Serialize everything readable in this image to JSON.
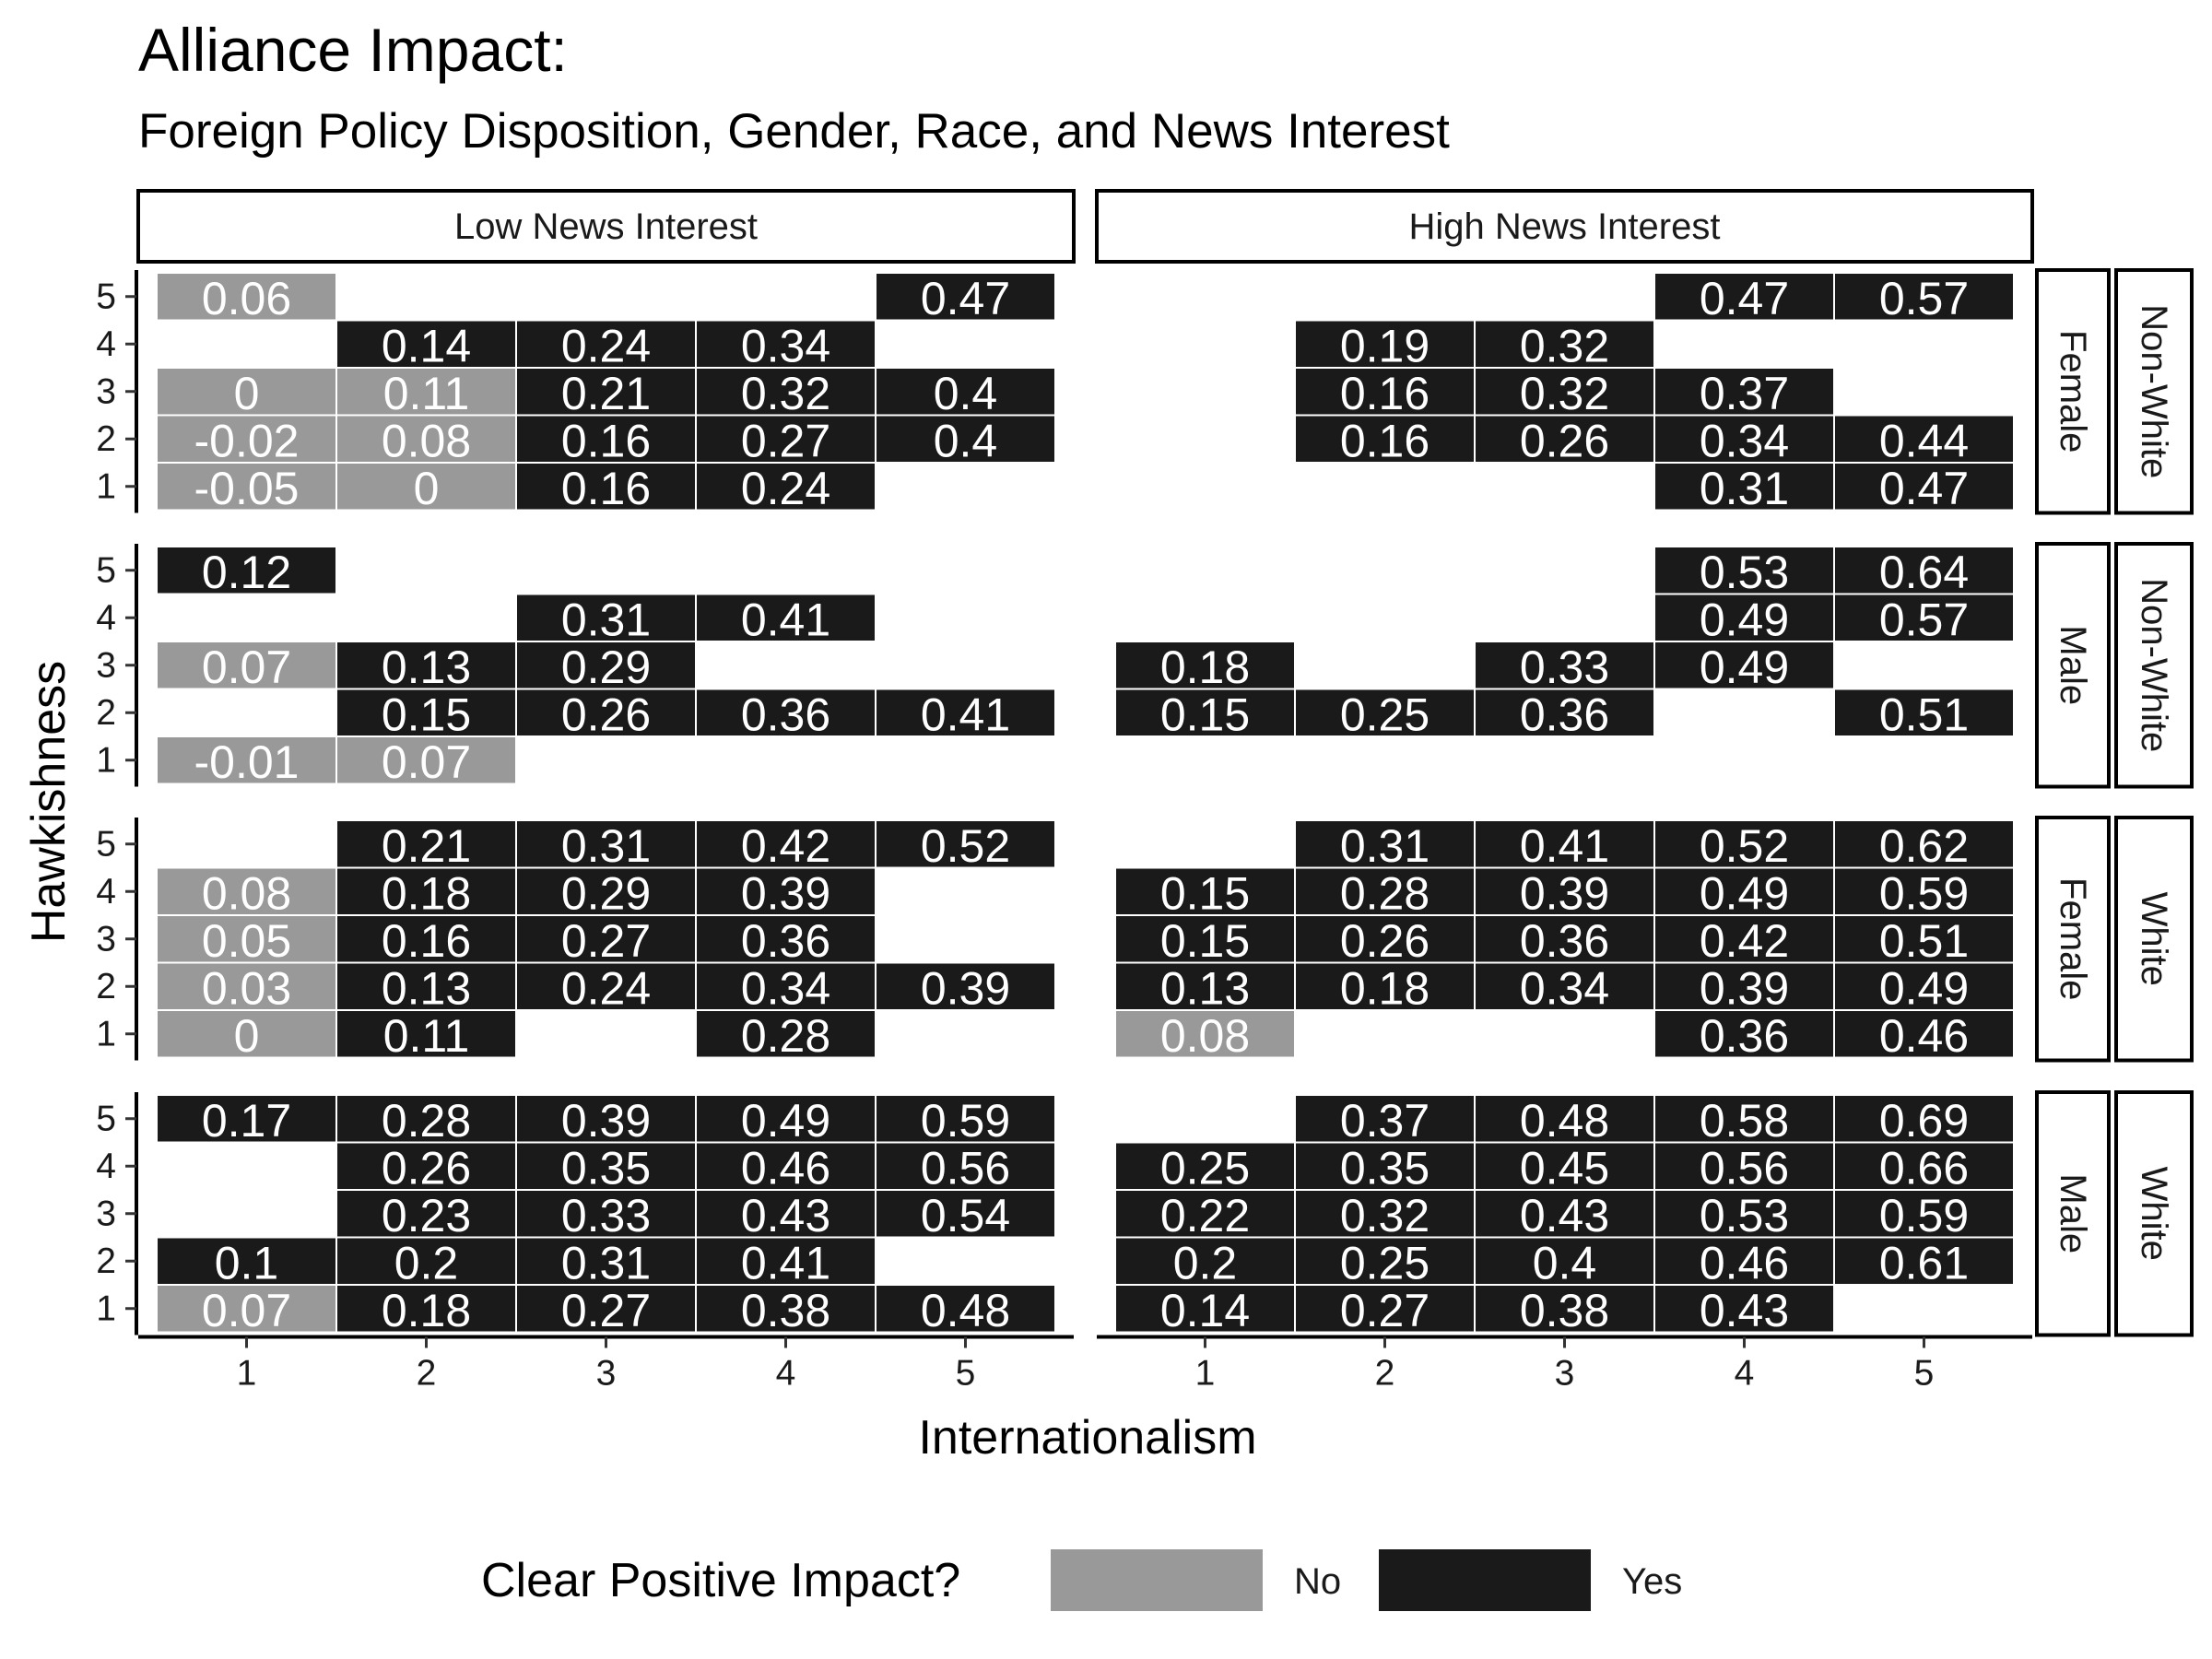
{
  "chart_data": {
    "type": "heatmap",
    "title": "Alliance Impact:",
    "subtitle": "Foreign Policy Disposition, Gender, Race, and News Interest",
    "xlabel": "Internationalism",
    "ylabel": "Hawkishness",
    "x_ticks": [
      "1",
      "2",
      "3",
      "4",
      "5"
    ],
    "y_ticks": [
      "1",
      "2",
      "3",
      "4",
      "5"
    ],
    "xlim": [
      1,
      5
    ],
    "ylim": [
      1,
      5
    ],
    "grid": false,
    "legend": {
      "title": "Clear Positive Impact?",
      "position": "bottom",
      "entries": [
        {
          "label": "No",
          "color": "#999999"
        },
        {
          "label": "Yes",
          "color": "#1a1a1a"
        }
      ]
    },
    "columns": [
      "Low News Interest",
      "High News Interest"
    ],
    "rows": [
      {
        "gender": "Female",
        "race": "Non-White"
      },
      {
        "gender": "Male",
        "race": "Non-White"
      },
      {
        "gender": "Female",
        "race": "White"
      },
      {
        "gender": "Male",
        "race": "White"
      }
    ],
    "panels": [
      {
        "row": 0,
        "col": 0,
        "cells": [
          {
            "x": 1,
            "y": 5,
            "value": "0.06",
            "positive": false
          },
          {
            "x": 5,
            "y": 5,
            "value": "0.47",
            "positive": true
          },
          {
            "x": 2,
            "y": 4,
            "value": "0.14",
            "positive": true
          },
          {
            "x": 3,
            "y": 4,
            "value": "0.24",
            "positive": true
          },
          {
            "x": 4,
            "y": 4,
            "value": "0.34",
            "positive": true
          },
          {
            "x": 1,
            "y": 3,
            "value": "0",
            "positive": false
          },
          {
            "x": 2,
            "y": 3,
            "value": "0.11",
            "positive": false
          },
          {
            "x": 3,
            "y": 3,
            "value": "0.21",
            "positive": true
          },
          {
            "x": 4,
            "y": 3,
            "value": "0.32",
            "positive": true
          },
          {
            "x": 5,
            "y": 3,
            "value": "0.4",
            "positive": true
          },
          {
            "x": 1,
            "y": 2,
            "value": "-0.02",
            "positive": false
          },
          {
            "x": 2,
            "y": 2,
            "value": "0.08",
            "positive": false
          },
          {
            "x": 3,
            "y": 2,
            "value": "0.16",
            "positive": true
          },
          {
            "x": 4,
            "y": 2,
            "value": "0.27",
            "positive": true
          },
          {
            "x": 5,
            "y": 2,
            "value": "0.4",
            "positive": true
          },
          {
            "x": 1,
            "y": 1,
            "value": "-0.05",
            "positive": false
          },
          {
            "x": 2,
            "y": 1,
            "value": "0",
            "positive": false
          },
          {
            "x": 3,
            "y": 1,
            "value": "0.16",
            "positive": true
          },
          {
            "x": 4,
            "y": 1,
            "value": "0.24",
            "positive": true
          }
        ]
      },
      {
        "row": 0,
        "col": 1,
        "cells": [
          {
            "x": 4,
            "y": 5,
            "value": "0.47",
            "positive": true
          },
          {
            "x": 5,
            "y": 5,
            "value": "0.57",
            "positive": true
          },
          {
            "x": 2,
            "y": 4,
            "value": "0.19",
            "positive": true
          },
          {
            "x": 3,
            "y": 4,
            "value": "0.32",
            "positive": true
          },
          {
            "x": 2,
            "y": 3,
            "value": "0.16",
            "positive": true
          },
          {
            "x": 3,
            "y": 3,
            "value": "0.32",
            "positive": true
          },
          {
            "x": 4,
            "y": 3,
            "value": "0.37",
            "positive": true
          },
          {
            "x": 2,
            "y": 2,
            "value": "0.16",
            "positive": true
          },
          {
            "x": 3,
            "y": 2,
            "value": "0.26",
            "positive": true
          },
          {
            "x": 4,
            "y": 2,
            "value": "0.34",
            "positive": true
          },
          {
            "x": 5,
            "y": 2,
            "value": "0.44",
            "positive": true
          },
          {
            "x": 4,
            "y": 1,
            "value": "0.31",
            "positive": true
          },
          {
            "x": 5,
            "y": 1,
            "value": "0.47",
            "positive": true
          }
        ]
      },
      {
        "row": 1,
        "col": 0,
        "cells": [
          {
            "x": 1,
            "y": 5,
            "value": "0.12",
            "positive": true
          },
          {
            "x": 3,
            "y": 4,
            "value": "0.31",
            "positive": true
          },
          {
            "x": 4,
            "y": 4,
            "value": "0.41",
            "positive": true
          },
          {
            "x": 1,
            "y": 3,
            "value": "0.07",
            "positive": false
          },
          {
            "x": 2,
            "y": 3,
            "value": "0.13",
            "positive": true
          },
          {
            "x": 3,
            "y": 3,
            "value": "0.29",
            "positive": true
          },
          {
            "x": 2,
            "y": 2,
            "value": "0.15",
            "positive": true
          },
          {
            "x": 3,
            "y": 2,
            "value": "0.26",
            "positive": true
          },
          {
            "x": 4,
            "y": 2,
            "value": "0.36",
            "positive": true
          },
          {
            "x": 5,
            "y": 2,
            "value": "0.41",
            "positive": true
          },
          {
            "x": 1,
            "y": 1,
            "value": "-0.01",
            "positive": false
          },
          {
            "x": 2,
            "y": 1,
            "value": "0.07",
            "positive": false
          }
        ]
      },
      {
        "row": 1,
        "col": 1,
        "cells": [
          {
            "x": 4,
            "y": 5,
            "value": "0.53",
            "positive": true
          },
          {
            "x": 5,
            "y": 5,
            "value": "0.64",
            "positive": true
          },
          {
            "x": 4,
            "y": 4,
            "value": "0.49",
            "positive": true
          },
          {
            "x": 5,
            "y": 4,
            "value": "0.57",
            "positive": true
          },
          {
            "x": 1,
            "y": 3,
            "value": "0.18",
            "positive": true
          },
          {
            "x": 3,
            "y": 3,
            "value": "0.33",
            "positive": true
          },
          {
            "x": 4,
            "y": 3,
            "value": "0.49",
            "positive": true
          },
          {
            "x": 1,
            "y": 2,
            "value": "0.15",
            "positive": true
          },
          {
            "x": 2,
            "y": 2,
            "value": "0.25",
            "positive": true
          },
          {
            "x": 3,
            "y": 2,
            "value": "0.36",
            "positive": true
          },
          {
            "x": 5,
            "y": 2,
            "value": "0.51",
            "positive": true
          }
        ]
      },
      {
        "row": 2,
        "col": 0,
        "cells": [
          {
            "x": 2,
            "y": 5,
            "value": "0.21",
            "positive": true
          },
          {
            "x": 3,
            "y": 5,
            "value": "0.31",
            "positive": true
          },
          {
            "x": 4,
            "y": 5,
            "value": "0.42",
            "positive": true
          },
          {
            "x": 5,
            "y": 5,
            "value": "0.52",
            "positive": true
          },
          {
            "x": 1,
            "y": 4,
            "value": "0.08",
            "positive": false
          },
          {
            "x": 2,
            "y": 4,
            "value": "0.18",
            "positive": true
          },
          {
            "x": 3,
            "y": 4,
            "value": "0.29",
            "positive": true
          },
          {
            "x": 4,
            "y": 4,
            "value": "0.39",
            "positive": true
          },
          {
            "x": 1,
            "y": 3,
            "value": "0.05",
            "positive": false
          },
          {
            "x": 2,
            "y": 3,
            "value": "0.16",
            "positive": true
          },
          {
            "x": 3,
            "y": 3,
            "value": "0.27",
            "positive": true
          },
          {
            "x": 4,
            "y": 3,
            "value": "0.36",
            "positive": true
          },
          {
            "x": 1,
            "y": 2,
            "value": "0.03",
            "positive": false
          },
          {
            "x": 2,
            "y": 2,
            "value": "0.13",
            "positive": true
          },
          {
            "x": 3,
            "y": 2,
            "value": "0.24",
            "positive": true
          },
          {
            "x": 4,
            "y": 2,
            "value": "0.34",
            "positive": true
          },
          {
            "x": 5,
            "y": 2,
            "value": "0.39",
            "positive": true
          },
          {
            "x": 1,
            "y": 1,
            "value": "0",
            "positive": false
          },
          {
            "x": 2,
            "y": 1,
            "value": "0.11",
            "positive": true
          },
          {
            "x": 4,
            "y": 1,
            "value": "0.28",
            "positive": true
          }
        ]
      },
      {
        "row": 2,
        "col": 1,
        "cells": [
          {
            "x": 2,
            "y": 5,
            "value": "0.31",
            "positive": true
          },
          {
            "x": 3,
            "y": 5,
            "value": "0.41",
            "positive": true
          },
          {
            "x": 4,
            "y": 5,
            "value": "0.52",
            "positive": true
          },
          {
            "x": 5,
            "y": 5,
            "value": "0.62",
            "positive": true
          },
          {
            "x": 1,
            "y": 4,
            "value": "0.15",
            "positive": true
          },
          {
            "x": 2,
            "y": 4,
            "value": "0.28",
            "positive": true
          },
          {
            "x": 3,
            "y": 4,
            "value": "0.39",
            "positive": true
          },
          {
            "x": 4,
            "y": 4,
            "value": "0.49",
            "positive": true
          },
          {
            "x": 5,
            "y": 4,
            "value": "0.59",
            "positive": true
          },
          {
            "x": 1,
            "y": 3,
            "value": "0.15",
            "positive": true
          },
          {
            "x": 2,
            "y": 3,
            "value": "0.26",
            "positive": true
          },
          {
            "x": 3,
            "y": 3,
            "value": "0.36",
            "positive": true
          },
          {
            "x": 4,
            "y": 3,
            "value": "0.42",
            "positive": true
          },
          {
            "x": 5,
            "y": 3,
            "value": "0.51",
            "positive": true
          },
          {
            "x": 1,
            "y": 2,
            "value": "0.13",
            "positive": true
          },
          {
            "x": 2,
            "y": 2,
            "value": "0.18",
            "positive": true
          },
          {
            "x": 3,
            "y": 2,
            "value": "0.34",
            "positive": true
          },
          {
            "x": 4,
            "y": 2,
            "value": "0.39",
            "positive": true
          },
          {
            "x": 5,
            "y": 2,
            "value": "0.49",
            "positive": true
          },
          {
            "x": 1,
            "y": 1,
            "value": "0.08",
            "positive": false
          },
          {
            "x": 4,
            "y": 1,
            "value": "0.36",
            "positive": true
          },
          {
            "x": 5,
            "y": 1,
            "value": "0.46",
            "positive": true
          }
        ]
      },
      {
        "row": 3,
        "col": 0,
        "cells": [
          {
            "x": 1,
            "y": 5,
            "value": "0.17",
            "positive": true
          },
          {
            "x": 2,
            "y": 5,
            "value": "0.28",
            "positive": true
          },
          {
            "x": 3,
            "y": 5,
            "value": "0.39",
            "positive": true
          },
          {
            "x": 4,
            "y": 5,
            "value": "0.49",
            "positive": true
          },
          {
            "x": 5,
            "y": 5,
            "value": "0.59",
            "positive": true
          },
          {
            "x": 2,
            "y": 4,
            "value": "0.26",
            "positive": true
          },
          {
            "x": 3,
            "y": 4,
            "value": "0.35",
            "positive": true
          },
          {
            "x": 4,
            "y": 4,
            "value": "0.46",
            "positive": true
          },
          {
            "x": 5,
            "y": 4,
            "value": "0.56",
            "positive": true
          },
          {
            "x": 2,
            "y": 3,
            "value": "0.23",
            "positive": true
          },
          {
            "x": 3,
            "y": 3,
            "value": "0.33",
            "positive": true
          },
          {
            "x": 4,
            "y": 3,
            "value": "0.43",
            "positive": true
          },
          {
            "x": 5,
            "y": 3,
            "value": "0.54",
            "positive": true
          },
          {
            "x": 1,
            "y": 2,
            "value": "0.1",
            "positive": true
          },
          {
            "x": 2,
            "y": 2,
            "value": "0.2",
            "positive": true
          },
          {
            "x": 3,
            "y": 2,
            "value": "0.31",
            "positive": true
          },
          {
            "x": 4,
            "y": 2,
            "value": "0.41",
            "positive": true
          },
          {
            "x": 1,
            "y": 1,
            "value": "0.07",
            "positive": false
          },
          {
            "x": 2,
            "y": 1,
            "value": "0.18",
            "positive": true
          },
          {
            "x": 3,
            "y": 1,
            "value": "0.27",
            "positive": true
          },
          {
            "x": 4,
            "y": 1,
            "value": "0.38",
            "positive": true
          },
          {
            "x": 5,
            "y": 1,
            "value": "0.48",
            "positive": true
          }
        ]
      },
      {
        "row": 3,
        "col": 1,
        "cells": [
          {
            "x": 2,
            "y": 5,
            "value": "0.37",
            "positive": true
          },
          {
            "x": 3,
            "y": 5,
            "value": "0.48",
            "positive": true
          },
          {
            "x": 4,
            "y": 5,
            "value": "0.58",
            "positive": true
          },
          {
            "x": 5,
            "y": 5,
            "value": "0.69",
            "positive": true
          },
          {
            "x": 1,
            "y": 4,
            "value": "0.25",
            "positive": true
          },
          {
            "x": 2,
            "y": 4,
            "value": "0.35",
            "positive": true
          },
          {
            "x": 3,
            "y": 4,
            "value": "0.45",
            "positive": true
          },
          {
            "x": 4,
            "y": 4,
            "value": "0.56",
            "positive": true
          },
          {
            "x": 5,
            "y": 4,
            "value": "0.66",
            "positive": true
          },
          {
            "x": 1,
            "y": 3,
            "value": "0.22",
            "positive": true
          },
          {
            "x": 2,
            "y": 3,
            "value": "0.32",
            "positive": true
          },
          {
            "x": 3,
            "y": 3,
            "value": "0.43",
            "positive": true
          },
          {
            "x": 4,
            "y": 3,
            "value": "0.53",
            "positive": true
          },
          {
            "x": 5,
            "y": 3,
            "value": "0.59",
            "positive": true
          },
          {
            "x": 1,
            "y": 2,
            "value": "0.2",
            "positive": true
          },
          {
            "x": 2,
            "y": 2,
            "value": "0.25",
            "positive": true
          },
          {
            "x": 3,
            "y": 2,
            "value": "0.4",
            "positive": true
          },
          {
            "x": 4,
            "y": 2,
            "value": "0.46",
            "positive": true
          },
          {
            "x": 5,
            "y": 2,
            "value": "0.61",
            "positive": true
          },
          {
            "x": 1,
            "y": 1,
            "value": "0.14",
            "positive": true
          },
          {
            "x": 2,
            "y": 1,
            "value": "0.27",
            "positive": true
          },
          {
            "x": 3,
            "y": 1,
            "value": "0.38",
            "positive": true
          },
          {
            "x": 4,
            "y": 1,
            "value": "0.43",
            "positive": true
          }
        ]
      }
    ]
  }
}
